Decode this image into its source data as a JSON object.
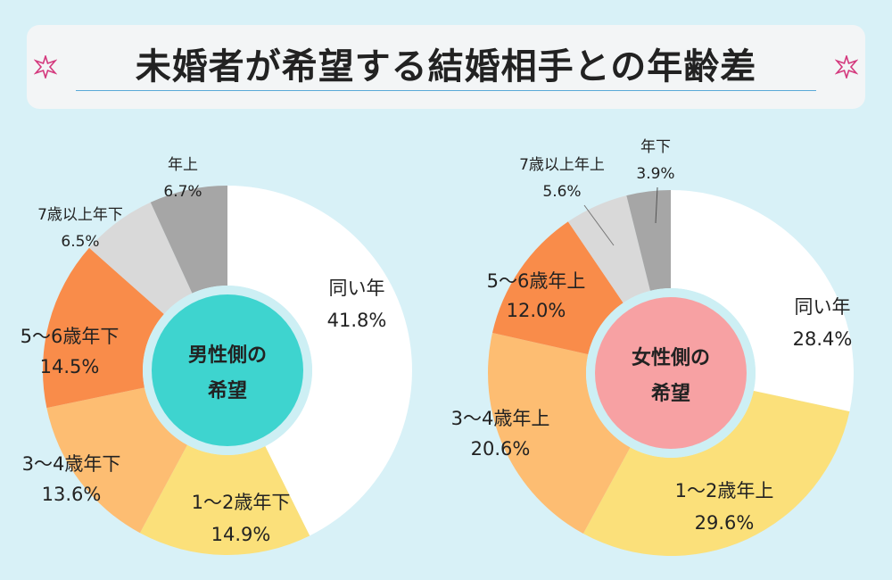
{
  "title": "未婚者が希望する結婚相手との年齢差",
  "colors": {
    "same": "#ffffff",
    "c1_2": "#fbe07a",
    "c3_4": "#fdbd72",
    "c5_6": "#f98c4a",
    "c7plus": "#d9d9d9",
    "other": "#a6a6a6",
    "male_center": "#3ed4cf",
    "female_center": "#f7a1a3",
    "ring": "#cdeff4"
  },
  "chart_data": [
    {
      "type": "pie",
      "center_label": [
        "男性側の",
        "希望"
      ],
      "categories": [
        "同い年",
        "1～2歳年下",
        "3～4歳年下",
        "5～6歳年下",
        "7歳以上年下",
        "年上"
      ],
      "values": [
        41.8,
        14.9,
        13.6,
        14.5,
        6.5,
        6.7
      ],
      "value_labels": [
        "41.8%",
        "14.9%",
        "13.6%",
        "14.5%",
        "6.5%",
        "6.7%"
      ]
    },
    {
      "type": "pie",
      "center_label": [
        "女性側の",
        "希望"
      ],
      "categories": [
        "同い年",
        "1～2歳年上",
        "3～4歳年上",
        "5～6歳年上",
        "7歳以上年上",
        "年下"
      ],
      "values": [
        28.4,
        29.6,
        20.6,
        12.0,
        5.6,
        3.9
      ],
      "value_labels": [
        "28.4%",
        "29.6%",
        "20.6%",
        "12.0%",
        "5.6%",
        "3.9%"
      ]
    }
  ]
}
